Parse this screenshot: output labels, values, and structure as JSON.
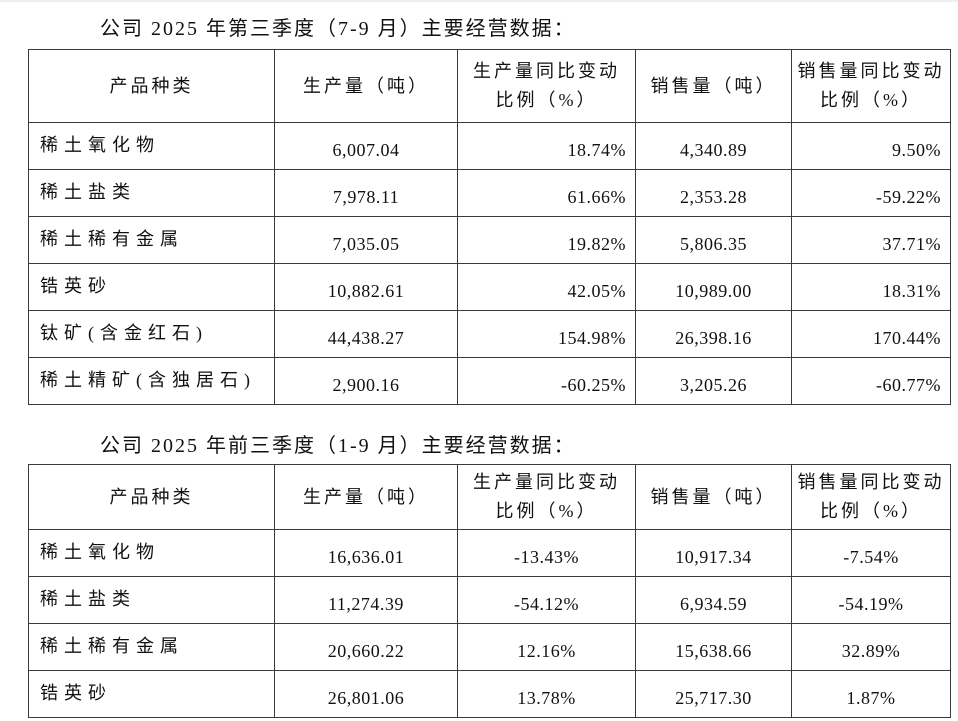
{
  "page": {
    "background_color": "#ffffff",
    "text_color": "#111111",
    "border_color": "#3a3a3a"
  },
  "document": {
    "tables": [
      {
        "title": "公司 2025 年第三季度（7-9 月）主要经营数据：",
        "columns": [
          {
            "lines": [
              "产品种类"
            ]
          },
          {
            "lines": [
              "生产量（吨）"
            ]
          },
          {
            "lines": [
              "生产量同比变动",
              "比例（%）"
            ]
          },
          {
            "lines": [
              "销售量（吨）"
            ]
          },
          {
            "lines": [
              "销售量同比变动",
              "比例（%）"
            ]
          }
        ],
        "rows": [
          {
            "product": "稀土氧化物",
            "production": "6,007.04",
            "production_yoy": "18.74%",
            "sales": "4,340.89",
            "sales_yoy": "9.50%"
          },
          {
            "product": "稀土盐类",
            "production": "7,978.11",
            "production_yoy": "61.66%",
            "sales": "2,353.28",
            "sales_yoy": "-59.22%"
          },
          {
            "product": "稀土稀有金属",
            "production": "7,035.05",
            "production_yoy": "19.82%",
            "sales": "5,806.35",
            "sales_yoy": "37.71%"
          },
          {
            "product": "锆英砂",
            "production": "10,882.61",
            "production_yoy": "42.05%",
            "sales": "10,989.00",
            "sales_yoy": "18.31%"
          },
          {
            "product": "钛矿(含金红石)",
            "production": "44,438.27",
            "production_yoy": "154.98%",
            "sales": "26,398.16",
            "sales_yoy": "170.44%"
          },
          {
            "product": "稀土精矿(含独居石)",
            "production": "2,900.16",
            "production_yoy": "-60.25%",
            "sales": "3,205.26",
            "sales_yoy": "-60.77%"
          }
        ]
      },
      {
        "title": "公司 2025 年前三季度（1-9 月）主要经营数据：",
        "columns": [
          {
            "lines": [
              "产品种类"
            ]
          },
          {
            "lines": [
              "生产量（吨）"
            ]
          },
          {
            "lines": [
              "生产量同比变动",
              "比例（%）"
            ]
          },
          {
            "lines": [
              "销售量（吨）"
            ]
          },
          {
            "lines": [
              "销售量同比变动",
              "比例（%）"
            ]
          }
        ],
        "rows": [
          {
            "product": "稀土氧化物",
            "production": "16,636.01",
            "production_yoy": "-13.43%",
            "sales": "10,917.34",
            "sales_yoy": "-7.54%"
          },
          {
            "product": "稀土盐类",
            "production": "11,274.39",
            "production_yoy": "-54.12%",
            "sales": "6,934.59",
            "sales_yoy": "-54.19%"
          },
          {
            "product": "稀土稀有金属",
            "production": "20,660.22",
            "production_yoy": "12.16%",
            "sales": "15,638.66",
            "sales_yoy": "32.89%"
          },
          {
            "product": "锆英砂",
            "production": "26,801.06",
            "production_yoy": "13.78%",
            "sales": "25,717.30",
            "sales_yoy": "1.87%"
          }
        ]
      }
    ]
  }
}
